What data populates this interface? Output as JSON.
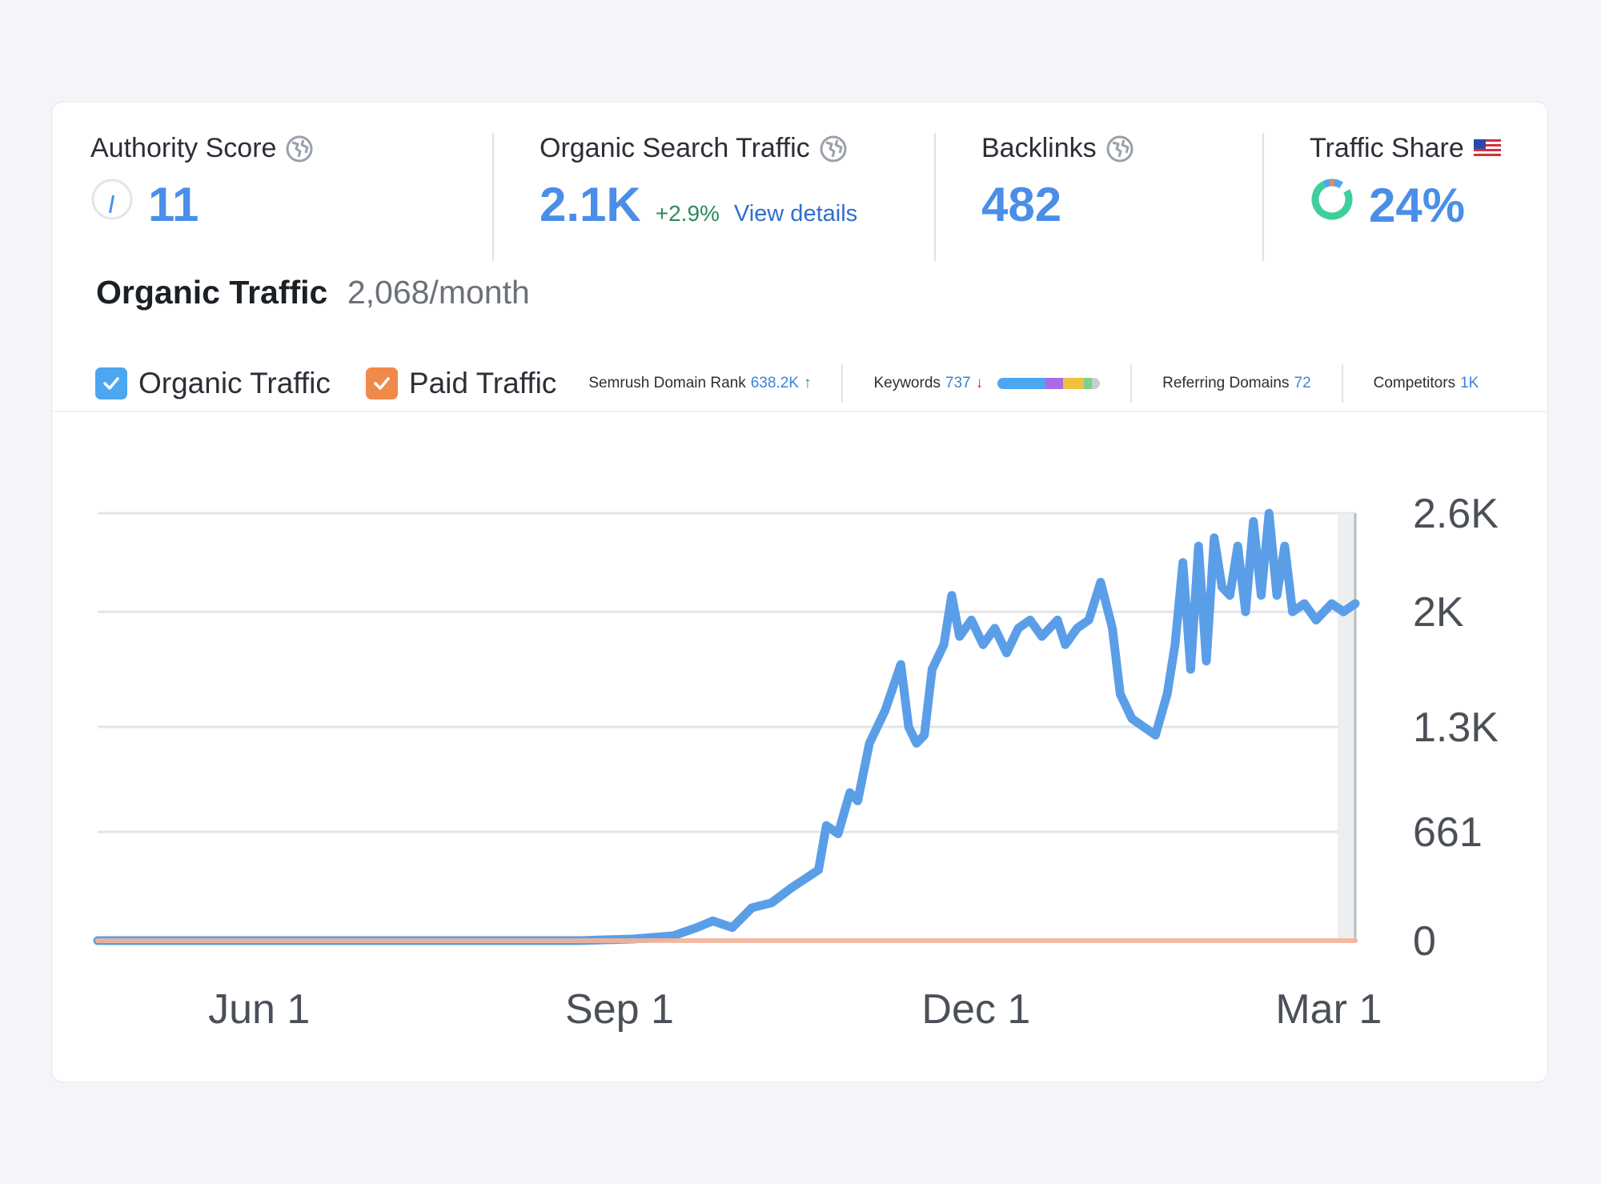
{
  "metrics": {
    "authority": {
      "label": "Authority Score",
      "value": "11",
      "icon": "globe-icon"
    },
    "organic": {
      "label": "Organic Search Traffic",
      "value": "2.1K",
      "change": "+2.9%",
      "link": "View details",
      "icon": "globe-icon"
    },
    "backlinks": {
      "label": "Backlinks",
      "value": "482",
      "icon": "globe-icon"
    },
    "traffic_share": {
      "label": "Traffic Share",
      "value": "24%",
      "icon": "us-flag-icon",
      "fraction": 0.24
    }
  },
  "section": {
    "title": "Organic Traffic",
    "subtitle": "2,068/month"
  },
  "legend": {
    "organic": {
      "label": "Organic Traffic",
      "checked": true,
      "color": "#4da6f0"
    },
    "paid": {
      "label": "Paid Traffic",
      "checked": true,
      "color": "#f08a4b"
    }
  },
  "stats": {
    "rank": {
      "label": "Semrush Domain Rank",
      "value": "638.2K",
      "trend": "↑"
    },
    "keywords": {
      "label": "Keywords",
      "value": "737",
      "trend": "↓"
    },
    "referring": {
      "label": "Referring Domains",
      "value": "72"
    },
    "competitors": {
      "label": "Competitors",
      "value": "1K"
    }
  },
  "colors": {
    "accent": "#4a8ee8",
    "organic_line": "#5b9ee8",
    "paid_line": "#f2b49a",
    "positive": "#2e8a5b",
    "keyword_segments": [
      "#4da6f0",
      "#a66ee6",
      "#f0c040",
      "#7fcf8a",
      "#c8ccd4"
    ]
  },
  "chart_data": {
    "type": "line",
    "x_ticks": [
      "Jun 1",
      "Sep 1",
      "Dec 1",
      "Mar 1"
    ],
    "y_ticks": [
      "2.6K",
      "2K",
      "1.3K",
      "661",
      "0"
    ],
    "y_tick_values": [
      2600,
      2000,
      1300,
      661,
      0
    ],
    "ylim": [
      0,
      2650
    ],
    "series": [
      {
        "name": "Organic Traffic",
        "color": "#5b9ee8",
        "points": [
          [
            "May 1",
            0
          ],
          [
            "Jun 1",
            0
          ],
          [
            "Jul 1",
            0
          ],
          [
            "Aug 1",
            0
          ],
          [
            "Sep 1",
            0
          ],
          [
            "Sep 15",
            10
          ],
          [
            "Sep 25",
            30
          ],
          [
            "Oct 1",
            80
          ],
          [
            "Oct 5",
            120
          ],
          [
            "Oct 10",
            80
          ],
          [
            "Oct 15",
            200
          ],
          [
            "Oct 20",
            230
          ],
          [
            "Oct 25",
            320
          ],
          [
            "Nov 1",
            430
          ],
          [
            "Nov 3",
            700
          ],
          [
            "Nov 6",
            650
          ],
          [
            "Nov 9",
            900
          ],
          [
            "Nov 11",
            850
          ],
          [
            "Nov 14",
            1200
          ],
          [
            "Nov 18",
            1400
          ],
          [
            "Nov 22",
            1680
          ],
          [
            "Nov 24",
            1300
          ],
          [
            "Nov 26",
            1200
          ],
          [
            "Nov 28",
            1250
          ],
          [
            "Nov 30",
            1650
          ],
          [
            "Dec 3",
            1800
          ],
          [
            "Dec 5",
            2100
          ],
          [
            "Dec 7",
            1850
          ],
          [
            "Dec 10",
            1950
          ],
          [
            "Dec 13",
            1800
          ],
          [
            "Dec 16",
            1900
          ],
          [
            "Dec 19",
            1750
          ],
          [
            "Dec 22",
            1900
          ],
          [
            "Dec 25",
            1950
          ],
          [
            "Dec 28",
            1850
          ],
          [
            "Jan 1",
            1950
          ],
          [
            "Jan 3",
            1800
          ],
          [
            "Jan 6",
            1900
          ],
          [
            "Jan 9",
            1950
          ],
          [
            "Jan 12",
            2180
          ],
          [
            "Jan 15",
            1900
          ],
          [
            "Jan 17",
            1500
          ],
          [
            "Jan 20",
            1350
          ],
          [
            "Jan 23",
            1300
          ],
          [
            "Jan 26",
            1250
          ],
          [
            "Jan 29",
            1500
          ],
          [
            "Jan 31",
            1800
          ],
          [
            "Feb 2",
            2300
          ],
          [
            "Feb 4",
            1650
          ],
          [
            "Feb 6",
            2400
          ],
          [
            "Feb 8",
            1700
          ],
          [
            "Feb 10",
            2450
          ],
          [
            "Feb 12",
            2150
          ],
          [
            "Feb 14",
            2100
          ],
          [
            "Feb 16",
            2400
          ],
          [
            "Feb 18",
            2000
          ],
          [
            "Feb 20",
            2550
          ],
          [
            "Feb 22",
            2100
          ],
          [
            "Feb 24",
            2600
          ],
          [
            "Feb 26",
            2100
          ],
          [
            "Feb 28",
            2400
          ],
          [
            "Mar 2",
            2000
          ],
          [
            "Mar 5",
            2050
          ],
          [
            "Mar 8",
            1950
          ],
          [
            "Mar 12",
            2050
          ],
          [
            "Mar 15",
            2000
          ],
          [
            "Mar 18",
            2050
          ]
        ]
      },
      {
        "name": "Paid Traffic",
        "color": "#f2b49a",
        "points": [
          [
            "May 1",
            0
          ],
          [
            "Mar 18",
            0
          ]
        ]
      }
    ]
  }
}
